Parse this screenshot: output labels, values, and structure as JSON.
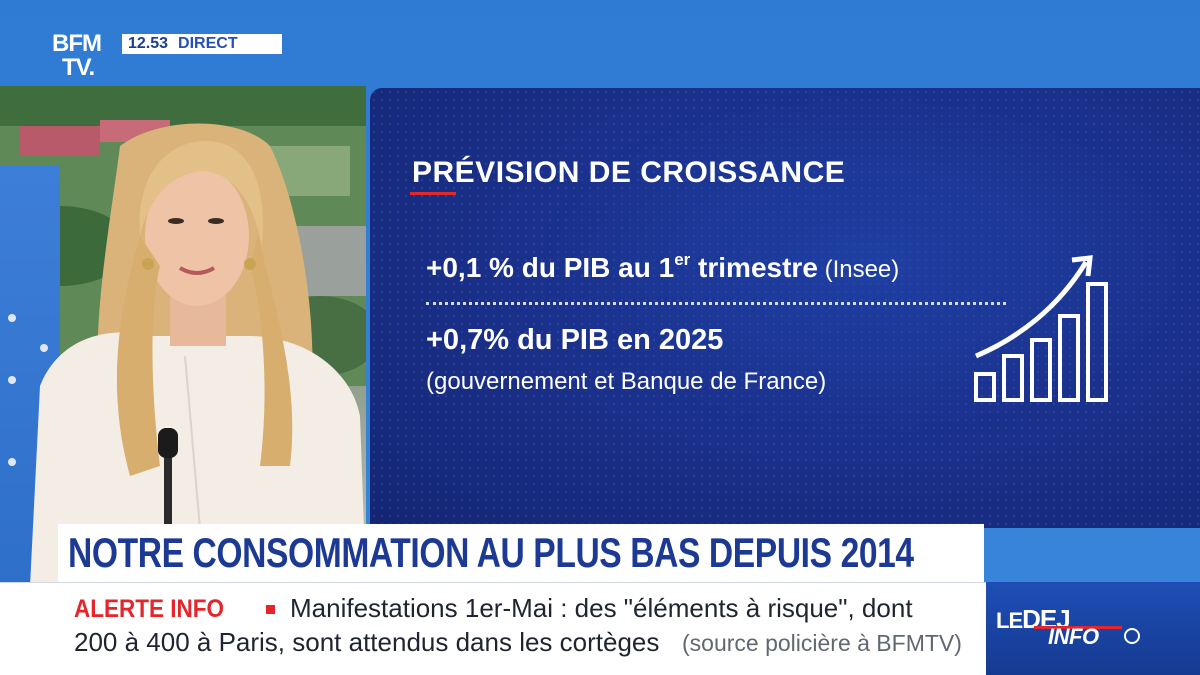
{
  "broadcast": {
    "logo_line1": "BFM",
    "logo_line2": "TV.",
    "time": "12.53",
    "live_label": "DIRECT"
  },
  "infographic": {
    "title": "PRÉVISION DE CROISSANCE",
    "line1_main": "+0,1 % du PIB au 1",
    "line1_sup": "er",
    "line1_rest": " trimestre",
    "line1_note": " (Insee)",
    "line2": "+0,7% du PIB en 2025",
    "line3": "(gouvernement et Banque de France)",
    "icon": "growth-chart-icon"
  },
  "headline": "NOTRE CONSOMMATION AU PLUS BAS DEPUIS 2014",
  "ticker": {
    "label": "ALERTE INFO",
    "text_line1": "Manifestations 1er-Mai : des \"éléments à risque\", dont",
    "text_line2": "200 à 400 à Paris, sont attendus dans les cortèges",
    "source": "(source policière à BFMTV)"
  },
  "show_logo": {
    "part1": "LE",
    "part2": "DEJ",
    "part3": "INFO"
  },
  "colors": {
    "brand_blue": "#1c3a94",
    "alert_red": "#e4262c",
    "panel_blue": "#1a2f88"
  }
}
